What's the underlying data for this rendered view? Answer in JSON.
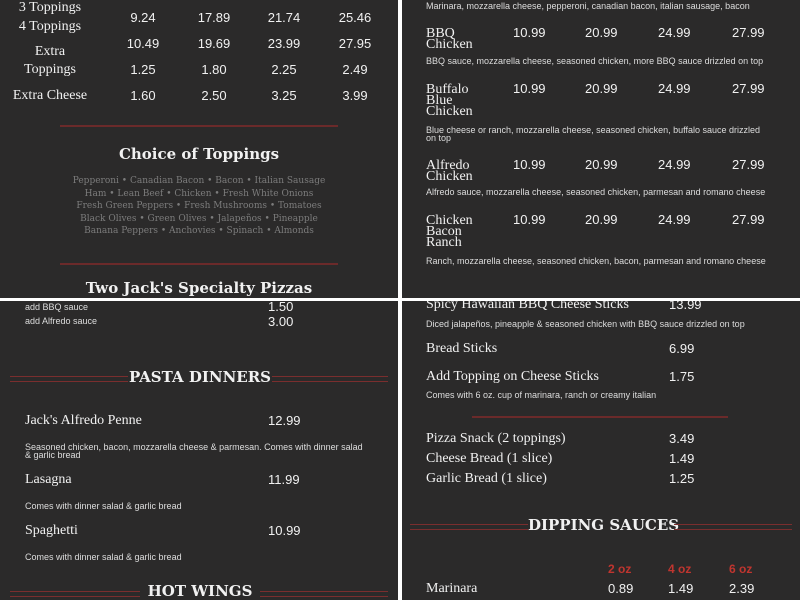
{
  "prices_table": {
    "rows": [
      {
        "label": "3 Toppings",
        "prices": []
      },
      {
        "label": "4 Toppings",
        "prices": [
          "9.24",
          "17.89",
          "21.74",
          "25.46"
        ]
      },
      {
        "label_lines": [
          "Extra",
          "Toppings"
        ],
        "prices_a": [
          "10.49",
          "19.69",
          "23.99",
          "27.95"
        ],
        "prices_b": [
          "1.25",
          "1.80",
          "2.25",
          "2.49"
        ]
      },
      {
        "label": "Extra Cheese",
        "prices": [
          "1.60",
          "2.50",
          "3.25",
          "3.99"
        ]
      }
    ]
  },
  "toppings": {
    "title": "Choice of Toppings",
    "lines": [
      "Pepperoni  •  Canadian Bacon  •  Bacon  •  Italian Sausage",
      "Ham  •  Lean Beef  •  Chicken  •  Fresh White Onions",
      "Fresh Green Peppers  •  Fresh Mushrooms  •  Tomatoes",
      "Black Olives  •  Green Olives  •  Jalapeños  •  Pineapple",
      "Banana Peppers  •  Anchovies  •  Spinach  •  Almonds"
    ]
  },
  "specialty_title": "Two Jack's Specialty Pizzas",
  "specialty": {
    "top_desc": "Marinara, mozzarella cheese, pepperoni, canadian bacon, italian sausage, bacon",
    "items": [
      {
        "name": "BBQ Chicken",
        "prices": [
          "10.99",
          "20.99",
          "24.99",
          "27.99"
        ],
        "desc": "BBQ sauce, mozzarella cheese, seasoned chicken, more BBQ sauce drizzled on top"
      },
      {
        "name": "Buffalo Blue Chicken",
        "prices": [
          "10.99",
          "20.99",
          "24.99",
          "27.99"
        ],
        "desc": "Blue cheese or ranch, mozzarella cheese, seasoned chicken, buffalo sauce drizzled on top"
      },
      {
        "name": "Alfredo Chicken",
        "prices": [
          "10.99",
          "20.99",
          "24.99",
          "27.99"
        ],
        "desc": "Alfredo sauce, mozzarella cheese, seasoned chicken, parmesan and romano cheese"
      },
      {
        "name": "Chicken Bacon Ranch",
        "prices": [
          "10.99",
          "20.99",
          "24.99",
          "27.99"
        ],
        "desc": "Ranch, mozzarella cheese, seasoned chicken, bacon, parmesan and romano cheese"
      }
    ]
  },
  "addons": [
    {
      "name": "add BBQ sauce",
      "price": "1.50"
    },
    {
      "name": "add Alfredo sauce",
      "price": "3.00"
    }
  ],
  "pasta": {
    "title": "PASTA DINNERS",
    "items": [
      {
        "name": "Jack's Alfredo Penne",
        "price": "12.99",
        "desc": "Seasoned chicken, bacon, mozzarella cheese & parmesan. Comes with dinner salad & garlic bread"
      },
      {
        "name": "Lasagna",
        "price": "11.99",
        "desc": "Comes with dinner salad & garlic bread"
      },
      {
        "name": "Spaghetti",
        "price": "10.99",
        "desc": "Comes with dinner salad & garlic bread"
      }
    ]
  },
  "wings_title": "HOT WINGS",
  "sides": {
    "items": [
      {
        "name": "Spicy Hawaiian BBQ Cheese Sticks",
        "price": "13.99",
        "desc": "Diced jalapeños, pineapple & seasoned chicken with BBQ sauce drizzled on top"
      },
      {
        "name": "Bread Sticks",
        "price": "6.99"
      },
      {
        "name": "Add Topping on Cheese Sticks",
        "price": "1.75",
        "desc": "Comes with 6 oz. cup of marinara, ranch or creamy italian"
      }
    ],
    "snacks": [
      {
        "name": "Pizza Snack (2 toppings)",
        "price": "3.49"
      },
      {
        "name": "Cheese Bread (1 slice)",
        "price": "1.49"
      },
      {
        "name": "Garlic Bread (1 slice)",
        "price": "1.25"
      }
    ]
  },
  "sauces": {
    "title": "DIPPING SAUCES",
    "sizes": [
      "2 oz",
      "4 oz",
      "6 oz"
    ],
    "items": [
      {
        "name": "Marinara",
        "prices": [
          "0.89",
          "1.49",
          "2.39"
        ]
      }
    ]
  },
  "colors": {
    "background": "#2b2a2a",
    "accent": "#c0352f",
    "divider": "#ffffff"
  }
}
